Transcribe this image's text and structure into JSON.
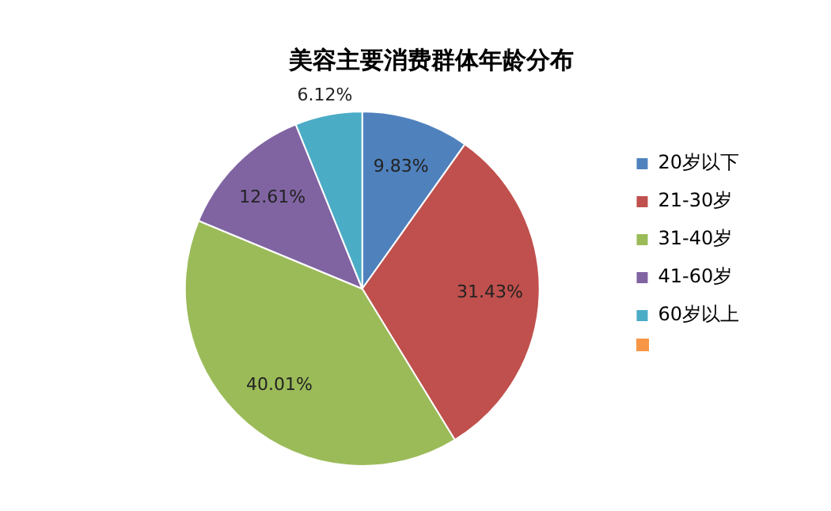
{
  "chart_data": {
    "type": "pie",
    "title": "美容主要消费群体年龄分布",
    "categories": [
      "20岁以下",
      "21-30岁",
      "31-40岁",
      "41-60岁",
      "60岁以上"
    ],
    "values": [
      9.83,
      31.43,
      40.01,
      12.61,
      6.12
    ],
    "value_labels": [
      "9.83%",
      "31.43%",
      "40.01%",
      "12.61%",
      "6.12%"
    ],
    "colors": [
      "#4f81bd",
      "#c0504d",
      "#9bbb59",
      "#8064a2",
      "#4bacc6"
    ],
    "legend": "right"
  }
}
